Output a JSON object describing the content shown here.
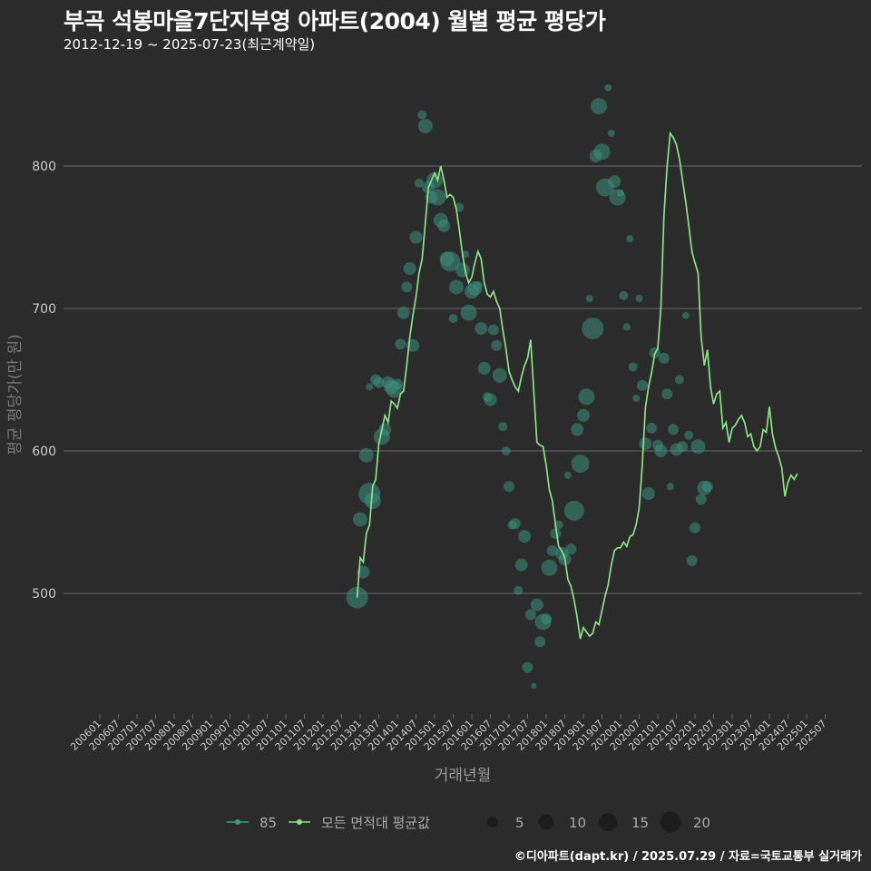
{
  "title": "부곡 석봉마을7단지부영 아파트(2004) 월별 평균 평당가",
  "subtitle": "2012-12-19 ~ 2025-07-23(최근계약일)",
  "footer": "©디아파트(dapt.kr) / 2025.07.29 / 자료=국토교통부 실거래가",
  "colors": {
    "background": "#2b2b2b",
    "grid": "#6a6a6a",
    "line": "#8fe08a",
    "point": "#3d8f7e",
    "legend_teal": "#3a9a8a",
    "text": "#cccccc"
  },
  "chart_data": {
    "type": "line",
    "xlabel": "거래년월",
    "ylabel": "평균 평당가(만 원)",
    "ylim": [
      420,
      860
    ],
    "yticks": [
      500,
      600,
      700,
      800
    ],
    "xticks": [
      "200601",
      "200607",
      "200701",
      "200707",
      "200801",
      "200807",
      "200901",
      "200907",
      "201001",
      "201007",
      "201101",
      "201107",
      "201201",
      "201207",
      "201301",
      "201307",
      "201401",
      "201407",
      "201501",
      "201507",
      "201601",
      "201607",
      "201701",
      "201707",
      "201801",
      "201807",
      "201901",
      "201907",
      "202001",
      "202007",
      "202101",
      "202107",
      "202201",
      "202207",
      "202301",
      "202307",
      "202401",
      "202407",
      "202501",
      "202507"
    ],
    "legend": {
      "series": [
        {
          "label": "85"
        },
        {
          "label": "모든 면적대 평균값"
        }
      ],
      "sizes": [
        {
          "label": "5",
          "value": 5
        },
        {
          "label": "10",
          "value": 10
        },
        {
          "label": "15",
          "value": 15
        },
        {
          "label": "20",
          "value": 20
        }
      ]
    },
    "series": [
      {
        "name": "모든 면적대 평균값",
        "points": [
          [
            "2012-12",
            497
          ],
          [
            "2013-01",
            525
          ],
          [
            "2013-02",
            522
          ],
          [
            "2013-03",
            542
          ],
          [
            "2013-04",
            548
          ],
          [
            "2013-05",
            575
          ],
          [
            "2013-06",
            580
          ],
          [
            "2013-07",
            605
          ],
          [
            "2013-08",
            615
          ],
          [
            "2013-09",
            625
          ],
          [
            "2013-10",
            620
          ],
          [
            "2013-11",
            635
          ],
          [
            "2013-12",
            633
          ],
          [
            "2014-01",
            630
          ],
          [
            "2014-02",
            640
          ],
          [
            "2014-03",
            642
          ],
          [
            "2014-04",
            660
          ],
          [
            "2014-05",
            680
          ],
          [
            "2014-06",
            695
          ],
          [
            "2014-07",
            708
          ],
          [
            "2014-08",
            725
          ],
          [
            "2014-09",
            735
          ],
          [
            "2014-10",
            760
          ],
          [
            "2014-11",
            785
          ],
          [
            "2014-12",
            790
          ],
          [
            "2015-01",
            795
          ],
          [
            "2015-02",
            790
          ],
          [
            "2015-03",
            800
          ],
          [
            "2015-04",
            790
          ],
          [
            "2015-05",
            778
          ],
          [
            "2015-06",
            780
          ],
          [
            "2015-07",
            778
          ],
          [
            "2015-08",
            770
          ],
          [
            "2015-09",
            755
          ],
          [
            "2015-10",
            738
          ],
          [
            "2015-11",
            725
          ],
          [
            "2015-12",
            718
          ],
          [
            "2016-01",
            722
          ],
          [
            "2016-02",
            732
          ],
          [
            "2016-03",
            740
          ],
          [
            "2016-04",
            735
          ],
          [
            "2016-05",
            718
          ],
          [
            "2016-06",
            710
          ],
          [
            "2016-07",
            708
          ],
          [
            "2016-08",
            712
          ],
          [
            "2016-09",
            705
          ],
          [
            "2016-10",
            700
          ],
          [
            "2016-11",
            685
          ],
          [
            "2016-12",
            672
          ],
          [
            "2017-01",
            656
          ],
          [
            "2017-02",
            650
          ],
          [
            "2017-03",
            645
          ],
          [
            "2017-04",
            642
          ],
          [
            "2017-05",
            652
          ],
          [
            "2017-06",
            660
          ],
          [
            "2017-07",
            665
          ],
          [
            "2017-08",
            678
          ],
          [
            "2017-09",
            642
          ],
          [
            "2017-10",
            606
          ],
          [
            "2017-11",
            604
          ],
          [
            "2017-12",
            603
          ],
          [
            "2018-01",
            590
          ],
          [
            "2018-02",
            573
          ],
          [
            "2018-03",
            565
          ],
          [
            "2018-04",
            548
          ],
          [
            "2018-05",
            533
          ],
          [
            "2018-06",
            530
          ],
          [
            "2018-07",
            525
          ],
          [
            "2018-08",
            510
          ],
          [
            "2018-09",
            505
          ],
          [
            "2018-10",
            495
          ],
          [
            "2018-11",
            483
          ],
          [
            "2018-12",
            468
          ],
          [
            "2019-01",
            476
          ],
          [
            "2019-02",
            473
          ],
          [
            "2019-03",
            470
          ],
          [
            "2019-04",
            472
          ],
          [
            "2019-05",
            480
          ],
          [
            "2019-06",
            478
          ],
          [
            "2019-07",
            488
          ],
          [
            "2019-08",
            498
          ],
          [
            "2019-09",
            506
          ],
          [
            "2019-10",
            520
          ],
          [
            "2019-11",
            530
          ],
          [
            "2019-12",
            532
          ],
          [
            "2020-01",
            532
          ],
          [
            "2020-02",
            536
          ],
          [
            "2020-03",
            533
          ],
          [
            "2020-04",
            540
          ],
          [
            "2020-05",
            541
          ],
          [
            "2020-06",
            548
          ],
          [
            "2020-07",
            560
          ],
          [
            "2020-08",
            590
          ],
          [
            "2020-09",
            630
          ],
          [
            "2020-10",
            645
          ],
          [
            "2020-11",
            655
          ],
          [
            "2020-12",
            668
          ],
          [
            "2021-01",
            672
          ],
          [
            "2021-02",
            700
          ],
          [
            "2021-03",
            765
          ],
          [
            "2021-04",
            800
          ],
          [
            "2021-05",
            823
          ],
          [
            "2021-06",
            820
          ],
          [
            "2021-07",
            815
          ],
          [
            "2021-08",
            805
          ],
          [
            "2021-09",
            790
          ],
          [
            "2021-10",
            775
          ],
          [
            "2021-11",
            758
          ],
          [
            "2021-12",
            740
          ],
          [
            "2022-01",
            732
          ],
          [
            "2022-02",
            725
          ],
          [
            "2022-03",
            680
          ],
          [
            "2022-04",
            660
          ],
          [
            "2022-05",
            671
          ],
          [
            "2022-06",
            645
          ],
          [
            "2022-07",
            633
          ],
          [
            "2022-08",
            640
          ],
          [
            "2022-09",
            642
          ],
          [
            "2022-10",
            616
          ],
          [
            "2022-11",
            620
          ],
          [
            "2022-12",
            606
          ],
          [
            "2023-01",
            616
          ],
          [
            "2023-02",
            618
          ],
          [
            "2023-03",
            622
          ],
          [
            "2023-04",
            625
          ],
          [
            "2023-05",
            620
          ],
          [
            "2023-06",
            610
          ],
          [
            "2023-07",
            612
          ],
          [
            "2023-08",
            603
          ],
          [
            "2023-09",
            600
          ],
          [
            "2023-10",
            603
          ],
          [
            "2023-11",
            615
          ],
          [
            "2023-12",
            613
          ],
          [
            "2024-01",
            631
          ],
          [
            "2024-02",
            612
          ],
          [
            "2024-03",
            602
          ],
          [
            "2024-04",
            596
          ],
          [
            "2024-05",
            588
          ],
          [
            "2024-06",
            568
          ],
          [
            "2024-07",
            578
          ],
          [
            "2024-08",
            583
          ],
          [
            "2024-09",
            580
          ],
          [
            "2024-10",
            584
          ]
        ]
      }
    ],
    "scatter": [
      [
        "2012-12",
        497,
        12
      ],
      [
        "2013-01",
        552,
        8
      ],
      [
        "2013-02",
        515,
        7
      ],
      [
        "2013-03",
        597,
        8
      ],
      [
        "2013-04",
        570,
        12
      ],
      [
        "2013-05",
        565,
        9
      ],
      [
        "2013-04",
        645,
        4
      ],
      [
        "2013-06",
        650,
        6
      ],
      [
        "2013-07",
        648,
        6
      ],
      [
        "2013-08",
        610,
        9
      ],
      [
        "2013-09",
        615,
        7
      ],
      [
        "2013-10",
        648,
        7
      ],
      [
        "2013-11",
        645,
        8
      ],
      [
        "2013-12",
        643,
        9
      ],
      [
        "2014-01",
        647,
        6
      ],
      [
        "2014-02",
        675,
        6
      ],
      [
        "2014-03",
        697,
        7
      ],
      [
        "2014-04",
        715,
        6
      ],
      [
        "2014-05",
        728,
        7
      ],
      [
        "2014-06",
        674,
        7
      ],
      [
        "2014-07",
        750,
        7
      ],
      [
        "2014-08",
        788,
        5
      ],
      [
        "2014-09",
        836,
        5
      ],
      [
        "2014-10",
        828,
        8
      ],
      [
        "2014-11",
        785,
        7
      ],
      [
        "2014-12",
        778,
        7
      ],
      [
        "2015-01",
        790,
        9
      ],
      [
        "2015-02",
        778,
        9
      ],
      [
        "2015-03",
        762,
        8
      ],
      [
        "2015-04",
        758,
        7
      ],
      [
        "2015-05",
        735,
        8
      ],
      [
        "2015-06",
        733,
        11
      ],
      [
        "2015-07",
        693,
        5
      ],
      [
        "2015-08",
        715,
        8
      ],
      [
        "2015-09",
        771,
        5
      ],
      [
        "2015-10",
        727,
        8
      ],
      [
        "2015-11",
        738,
        4
      ],
      [
        "2015-12",
        697,
        9
      ],
      [
        "2016-01",
        712,
        8
      ],
      [
        "2016-02",
        714,
        8
      ],
      [
        "2016-03",
        716,
        5
      ],
      [
        "2016-04",
        686,
        7
      ],
      [
        "2016-05",
        658,
        7
      ],
      [
        "2016-06",
        638,
        5
      ],
      [
        "2016-07",
        636,
        7
      ],
      [
        "2016-08",
        685,
        6
      ],
      [
        "2016-09",
        674,
        6
      ],
      [
        "2016-10",
        653,
        8
      ],
      [
        "2016-11",
        617,
        5
      ],
      [
        "2016-12",
        600,
        5
      ],
      [
        "2017-01",
        575,
        6
      ],
      [
        "2017-02",
        548,
        5
      ],
      [
        "2017-03",
        549,
        6
      ],
      [
        "2017-04",
        502,
        5
      ],
      [
        "2017-05",
        520,
        7
      ],
      [
        "2017-06",
        540,
        7
      ],
      [
        "2017-07",
        448,
        6
      ],
      [
        "2017-08",
        485,
        6
      ],
      [
        "2017-09",
        435,
        3
      ],
      [
        "2017-10",
        492,
        7
      ],
      [
        "2017-11",
        466,
        6
      ],
      [
        "2017-12",
        480,
        9
      ],
      [
        "2018-01",
        482,
        6
      ],
      [
        "2018-02",
        518,
        9
      ],
      [
        "2018-03",
        530,
        6
      ],
      [
        "2018-04",
        542,
        6
      ],
      [
        "2018-05",
        548,
        5
      ],
      [
        "2018-06",
        528,
        7
      ],
      [
        "2018-07",
        524,
        7
      ],
      [
        "2018-08",
        583,
        4
      ],
      [
        "2018-09",
        531,
        6
      ],
      [
        "2018-10",
        558,
        11
      ],
      [
        "2018-11",
        615,
        7
      ],
      [
        "2018-12",
        591,
        10
      ],
      [
        "2019-01",
        625,
        7
      ],
      [
        "2019-02",
        638,
        9
      ],
      [
        "2019-03",
        707,
        4
      ],
      [
        "2019-04",
        686,
        12
      ],
      [
        "2019-05",
        807,
        7
      ],
      [
        "2019-06",
        842,
        9
      ],
      [
        "2019-07",
        810,
        9
      ],
      [
        "2019-08",
        785,
        10
      ],
      [
        "2019-09",
        855,
        4
      ],
      [
        "2019-10",
        823,
        4
      ],
      [
        "2019-11",
        789,
        7
      ],
      [
        "2019-12",
        778,
        9
      ],
      [
        "2020-01",
        781,
        4
      ],
      [
        "2020-02",
        709,
        5
      ],
      [
        "2020-03",
        687,
        4
      ],
      [
        "2020-04",
        749,
        4
      ],
      [
        "2020-05",
        659,
        5
      ],
      [
        "2020-06",
        637,
        4
      ],
      [
        "2020-07",
        707,
        4
      ],
      [
        "2020-08",
        646,
        6
      ],
      [
        "2020-09",
        605,
        7
      ],
      [
        "2020-10",
        570,
        7
      ],
      [
        "2020-11",
        616,
        6
      ],
      [
        "2020-12",
        669,
        6
      ],
      [
        "2021-01",
        604,
        6
      ],
      [
        "2021-02",
        600,
        7
      ],
      [
        "2021-03",
        665,
        6
      ],
      [
        "2021-04",
        640,
        6
      ],
      [
        "2021-05",
        575,
        4
      ],
      [
        "2021-06",
        615,
        6
      ],
      [
        "2021-07",
        601,
        7
      ],
      [
        "2021-08",
        650,
        5
      ],
      [
        "2021-09",
        603,
        6
      ],
      [
        "2021-10",
        695,
        4
      ],
      [
        "2021-11",
        611,
        5
      ],
      [
        "2021-12",
        523,
        6
      ],
      [
        "2022-01",
        546,
        6
      ],
      [
        "2022-02",
        603,
        8
      ],
      [
        "2022-03",
        566,
        6
      ],
      [
        "2022-04",
        574,
        8
      ],
      [
        "2022-05",
        575,
        6
      ]
    ]
  }
}
